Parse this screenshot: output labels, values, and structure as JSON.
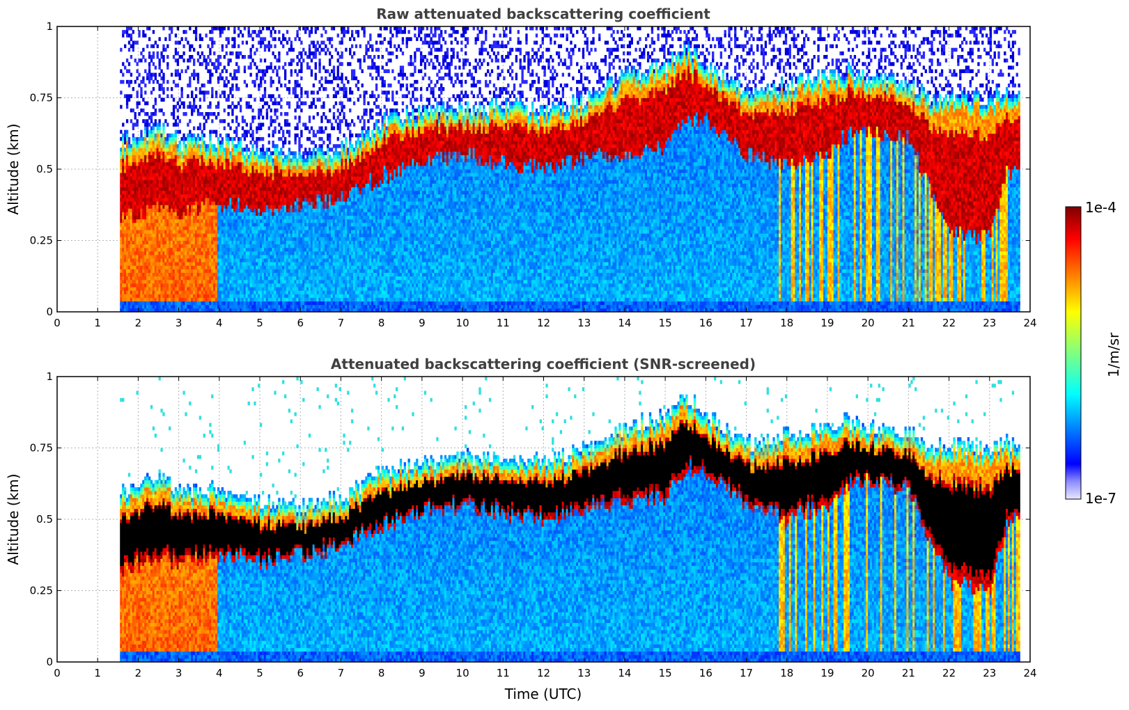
{
  "figure": {
    "xlabel": "Time (UTC)",
    "colorbar": {
      "label": "1/m/sr",
      "max_label": "1e-4",
      "min_label": "1e-7"
    }
  },
  "chart_data": [
    {
      "type": "heatmap",
      "title": "Raw attenuated backscattering coefficient",
      "xlabel": "",
      "ylabel": "Altitude (km)",
      "xlim": [
        0,
        24
      ],
      "ylim": [
        0,
        1
      ],
      "xticks": [
        "0",
        "1",
        "2",
        "3",
        "4",
        "5",
        "6",
        "7",
        "8",
        "9",
        "10",
        "11",
        "12",
        "13",
        "14",
        "15",
        "16",
        "17",
        "18",
        "19",
        "20",
        "21",
        "22",
        "23",
        "24"
      ],
      "yticks": [
        "0",
        "0.25",
        "0.5",
        "0.75",
        "1"
      ],
      "data_start_hour": 1.55,
      "data_end_hour": 23.75,
      "colorscale": "jet",
      "color_range": [
        "1e-7",
        "1e-4"
      ],
      "cloud_base_km": [
        [
          1.55,
          0.32
        ],
        [
          2.5,
          0.36
        ],
        [
          3.0,
          0.34
        ],
        [
          4.0,
          0.38
        ],
        [
          5.0,
          0.34
        ],
        [
          6.0,
          0.37
        ],
        [
          7.0,
          0.4
        ],
        [
          8.0,
          0.47
        ],
        [
          9.0,
          0.53
        ],
        [
          10.0,
          0.54
        ],
        [
          11.0,
          0.52
        ],
        [
          12.0,
          0.5
        ],
        [
          13.0,
          0.53
        ],
        [
          14.0,
          0.55
        ],
        [
          15.0,
          0.57
        ],
        [
          15.5,
          0.68
        ],
        [
          16.0,
          0.66
        ],
        [
          17.0,
          0.55
        ],
        [
          18.0,
          0.5
        ],
        [
          19.0,
          0.55
        ],
        [
          19.5,
          0.62
        ],
        [
          20.0,
          0.63
        ],
        [
          21.0,
          0.6
        ],
        [
          21.5,
          0.42
        ],
        [
          22.0,
          0.28
        ],
        [
          23.0,
          0.25
        ],
        [
          23.4,
          0.48
        ],
        [
          23.75,
          0.5
        ]
      ],
      "cloud_top_km": [
        [
          1.55,
          0.55
        ],
        [
          2.5,
          0.6
        ],
        [
          3.0,
          0.55
        ],
        [
          4.0,
          0.56
        ],
        [
          5.0,
          0.52
        ],
        [
          6.0,
          0.5
        ],
        [
          7.0,
          0.53
        ],
        [
          8.0,
          0.62
        ],
        [
          9.0,
          0.66
        ],
        [
          10.0,
          0.67
        ],
        [
          11.0,
          0.68
        ],
        [
          12.0,
          0.66
        ],
        [
          13.0,
          0.7
        ],
        [
          14.0,
          0.78
        ],
        [
          15.0,
          0.82
        ],
        [
          15.5,
          0.88
        ],
        [
          16.0,
          0.82
        ],
        [
          17.0,
          0.72
        ],
        [
          18.0,
          0.75
        ],
        [
          19.0,
          0.78
        ],
        [
          19.5,
          0.8
        ],
        [
          20.0,
          0.78
        ],
        [
          21.0,
          0.76
        ],
        [
          21.5,
          0.7
        ],
        [
          22.0,
          0.72
        ],
        [
          23.0,
          0.7
        ],
        [
          23.4,
          0.72
        ],
        [
          23.75,
          0.7
        ]
      ]
    },
    {
      "type": "heatmap",
      "title": "Attenuated backscattering coefficient (SNR-screened)",
      "xlabel": "Time (UTC)",
      "ylabel": "Altitude (km)",
      "xlim": [
        0,
        24
      ],
      "ylim": [
        0,
        1
      ],
      "xticks": [
        "0",
        "1",
        "2",
        "3",
        "4",
        "5",
        "6",
        "7",
        "8",
        "9",
        "10",
        "11",
        "12",
        "13",
        "14",
        "15",
        "16",
        "17",
        "18",
        "19",
        "20",
        "21",
        "22",
        "23",
        "24"
      ],
      "yticks": [
        "0",
        "0.25",
        "0.5",
        "0.75",
        "1"
      ],
      "data_start_hour": 1.55,
      "data_end_hour": 23.75,
      "colorscale": "jet",
      "color_range": [
        "1e-7",
        "1e-4"
      ],
      "saturated_color": "#000000"
    }
  ]
}
